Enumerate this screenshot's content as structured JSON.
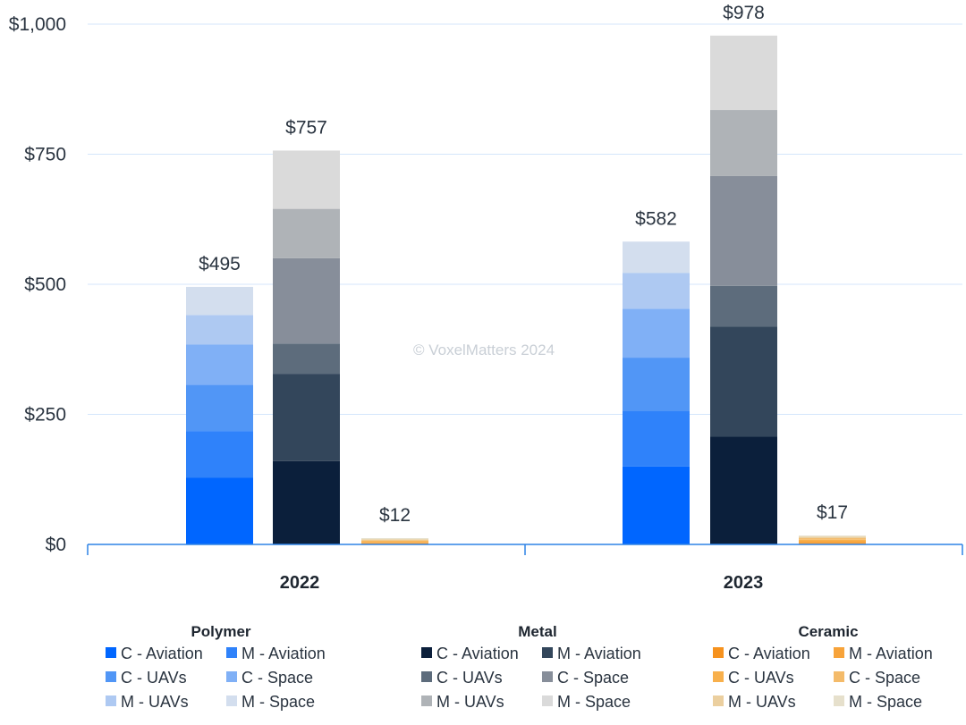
{
  "watermark": "© VoxelMatters 2024",
  "chart_data": {
    "type": "bar",
    "stacked": true,
    "categories": [
      "2022",
      "2023"
    ],
    "ylim": [
      0,
      1000
    ],
    "yticks": [
      0,
      250,
      500,
      750,
      1000
    ],
    "ytick_labels": [
      "$0",
      "$250",
      "$500",
      "$750",
      "$1,000"
    ],
    "grid": true,
    "legend_position": "bottom",
    "groups": [
      {
        "name": "Polymer",
        "totals": [
          495,
          582
        ],
        "total_labels": [
          "$495",
          "$582"
        ],
        "segments": [
          {
            "name": "C - Aviation",
            "color": "#0066ff",
            "values": [
              128,
              150
            ]
          },
          {
            "name": "M - Aviation",
            "color": "#2f82fa",
            "values": [
              90,
              106
            ]
          },
          {
            "name": "C - UAVs",
            "color": "#5196f6",
            "values": [
              89,
              103
            ]
          },
          {
            "name": "C - Space",
            "color": "#80b0f6",
            "values": [
              77,
              94
            ]
          },
          {
            "name": "M - UAVs",
            "color": "#aec9f2",
            "values": [
              57,
              69
            ]
          },
          {
            "name": "M - Space",
            "color": "#d3deee",
            "values": [
              54,
              60
            ]
          }
        ]
      },
      {
        "name": "Metal",
        "totals": [
          757,
          978
        ],
        "total_labels": [
          "$757",
          "$978"
        ],
        "segments": [
          {
            "name": "C - Aviation",
            "color": "#0b1f3b",
            "values": [
              160,
              207
            ]
          },
          {
            "name": "M - Aviation",
            "color": "#33465b",
            "values": [
              168,
              212
            ]
          },
          {
            "name": "C - UAVs",
            "color": "#5d6c7c",
            "values": [
              58,
              78
            ]
          },
          {
            "name": "C - Space",
            "color": "#878e9a",
            "values": [
              164,
              211
            ]
          },
          {
            "name": "M - UAVs",
            "color": "#afb3b7",
            "values": [
              95,
              127
            ]
          },
          {
            "name": "M - Space",
            "color": "#dadada",
            "values": [
              112,
              143
            ]
          }
        ]
      },
      {
        "name": "Ceramic",
        "totals": [
          12,
          17
        ],
        "total_labels": [
          "$12",
          "$17"
        ],
        "segments": [
          {
            "name": "C - Aviation",
            "color": "#f6921e",
            "values": [
              2,
              3
            ]
          },
          {
            "name": "M - Aviation",
            "color": "#f7a33a",
            "values": [
              2,
              3
            ]
          },
          {
            "name": "C - UAVs",
            "color": "#f8b04c",
            "values": [
              2,
              3
            ]
          },
          {
            "name": "C - Space",
            "color": "#f4bb6a",
            "values": [
              2,
              3
            ]
          },
          {
            "name": "M - UAVs",
            "color": "#ebcf9f",
            "values": [
              2,
              3
            ]
          },
          {
            "name": "M - Space",
            "color": "#e6e0cc",
            "values": [
              2,
              2
            ]
          }
        ]
      }
    ]
  }
}
